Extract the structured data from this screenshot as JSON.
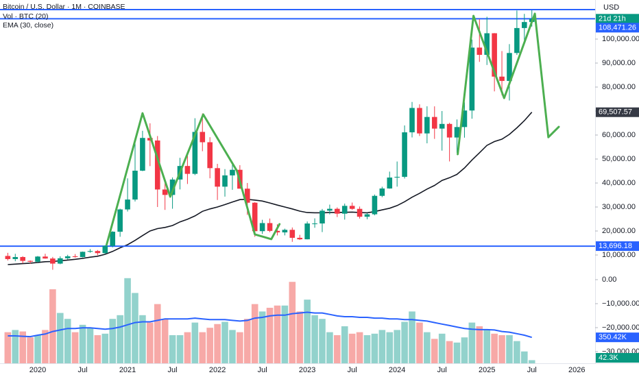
{
  "chart_data": {
    "type": "candlestick",
    "title": "Bitcoin / U.S. Dollar · 1M · COINBASE",
    "currency": "USD",
    "countdown": "21d 21h",
    "categories": [
      null,
      null,
      null,
      null,
      "2020",
      null,
      null,
      null,
      null,
      null,
      "Jul",
      null,
      null,
      null,
      null,
      null,
      "2021",
      null,
      null,
      null,
      null,
      null,
      "Jul",
      null,
      null,
      null,
      null,
      null,
      "2022",
      null,
      null,
      null,
      null,
      null,
      "Jul",
      null,
      null,
      null,
      null,
      null,
      "2023",
      null,
      null,
      null,
      null,
      null,
      "Jul",
      null,
      null,
      null,
      null,
      null,
      "2024",
      null,
      null,
      null,
      null,
      null,
      "Jul",
      null,
      null,
      null,
      null,
      null,
      "2025",
      null,
      null,
      null,
      null,
      null,
      "Jul",
      null,
      null,
      null,
      null,
      null,
      "2026"
    ],
    "open": [
      9600,
      8300,
      9150,
      7550,
      7190,
      9350,
      8530,
      6410,
      8630,
      9450,
      9140,
      11330,
      11650,
      10780,
      13800,
      19700,
      28990,
      33110,
      45140,
      58790,
      57720,
      37300,
      35040,
      41460,
      47100,
      43820,
      61300,
      57000,
      46200,
      38480,
      43180,
      45510,
      37640,
      31790,
      19930,
      23300,
      20050,
      19420,
      20490,
      17160,
      16540,
      23130,
      23140,
      28470,
      29250,
      27220,
      30480,
      29230,
      25940,
      26970,
      34650,
      37720,
      42280,
      42580,
      61130,
      71290,
      60670,
      67530,
      62680,
      64630,
      58970,
      63330,
      70220,
      96450,
      93430,
      102430,
      84350,
      82550,
      94200,
      104600,
      107100,
      null,
      null,
      null,
      null,
      null,
      null
    ],
    "high": [
      10900,
      10500,
      9500,
      7750,
      9580,
      10500,
      9190,
      9460,
      10080,
      10390,
      11440,
      12470,
      12070,
      14100,
      19900,
      29300,
      41950,
      58350,
      61780,
      64890,
      59590,
      41330,
      42320,
      50500,
      52920,
      67000,
      69000,
      59100,
      47990,
      45800,
      48200,
      47450,
      40020,
      31990,
      24670,
      25200,
      22800,
      20990,
      21470,
      18400,
      23960,
      25270,
      29190,
      31000,
      29830,
      31430,
      31860,
      30200,
      27500,
      35200,
      38450,
      44750,
      48970,
      64000,
      73790,
      72800,
      71980,
      71960,
      70000,
      65100,
      66500,
      73620,
      99800,
      108270,
      109300,
      102500,
      95000,
      97900,
      111900,
      110500,
      112000,
      null,
      null,
      null,
      null,
      null,
      null
    ],
    "low": [
      7700,
      7400,
      6500,
      6400,
      6850,
      8450,
      3850,
      6150,
      8110,
      8900,
      8990,
      10960,
      9880,
      10380,
      13200,
      17600,
      28130,
      32300,
      44950,
      47040,
      30000,
      28800,
      29280,
      37330,
      39600,
      43300,
      53260,
      41970,
      32930,
      34330,
      37170,
      37690,
      26700,
      17570,
      18780,
      19520,
      18150,
      18180,
      15480,
      16260,
      16500,
      21350,
      19550,
      26940,
      25810,
      24750,
      28860,
      25170,
      24900,
      26540,
      34100,
      37620,
      38500,
      41880,
      59000,
      59600,
      56550,
      58400,
      53500,
      49000,
      52550,
      58900,
      66800,
      90500,
      89200,
      78200,
      76600,
      74400,
      93400,
      98200,
      105200,
      null,
      null,
      null,
      null,
      null,
      null
    ],
    "close": [
      8300,
      9150,
      7550,
      7190,
      9350,
      8530,
      6410,
      8630,
      9450,
      9140,
      11330,
      11650,
      10780,
      13800,
      19700,
      28990,
      33110,
      45140,
      58790,
      57720,
      37300,
      35040,
      41460,
      47100,
      43820,
      61300,
      57000,
      46200,
      38480,
      43180,
      45510,
      37640,
      31790,
      19930,
      23300,
      20050,
      19420,
      20490,
      17160,
      16540,
      23130,
      23140,
      28470,
      29250,
      27220,
      30480,
      29230,
      25940,
      26970,
      34650,
      37720,
      42280,
      42580,
      61130,
      71290,
      60670,
      67530,
      62680,
      64630,
      58970,
      63330,
      70220,
      96450,
      93430,
      102430,
      84350,
      82550,
      94200,
      104600,
      107100,
      108471.26,
      null,
      null,
      null,
      null,
      null,
      null
    ],
    "up_color": "#089981",
    "down_color": "#f23645",
    "xlim": [
      -1.04,
      78.45
    ],
    "ylim": [
      3429,
      116286
    ],
    "yticks": [
      {
        "value": 10000,
        "label": "10,000.00"
      },
      {
        "value": 20000,
        "label": "20,000.00"
      },
      {
        "value": 30000,
        "label": "30,000.00"
      },
      {
        "value": 40000,
        "label": "40,000.00"
      },
      {
        "value": 50000,
        "label": "50,000.00"
      },
      {
        "value": 60000,
        "label": "60,000.00"
      },
      {
        "value": 70000,
        "label": "70,000.00"
      },
      {
        "value": 80000,
        "label": "80,000.00"
      },
      {
        "value": 90000,
        "label": "90,000.00"
      },
      {
        "value": 100000,
        "label": "100,000.00"
      }
    ],
    "levels": [
      {
        "value": 112286
      },
      {
        "value": 108471.26,
        "label": "108,471.26"
      },
      {
        "value": 13696.18,
        "label": "13,696.18"
      }
    ],
    "level_color": "#2962ff",
    "ema": {
      "name": "EMA (30, close)",
      "color": "#131722",
      "values": [
        6000,
        6200,
        6400,
        6600,
        6900,
        7200,
        7300,
        7600,
        7900,
        8200,
        8600,
        9100,
        9500,
        10300,
        11500,
        13000,
        14300,
        16100,
        18100,
        20000,
        21000,
        21500,
        22300,
        23800,
        24900,
        26300,
        28200,
        29200,
        30000,
        31000,
        32100,
        33100,
        33200,
        32900,
        32500,
        31700,
        30800,
        30000,
        29200,
        28300,
        27700,
        27600,
        27600,
        27700,
        27700,
        27800,
        27900,
        27700,
        27600,
        28100,
        28800,
        29500,
        30600,
        32200,
        34100,
        35700,
        37500,
        39000,
        41100,
        42200,
        43600,
        46300,
        49600,
        52600,
        55700,
        57300,
        58300,
        60300,
        63000,
        66000,
        69507.57,
        null,
        null,
        null,
        null,
        null,
        null
      ],
      "value_labels": [
        null,
        null,
        null,
        null,
        null,
        null,
        null,
        null,
        null,
        null,
        null,
        null,
        null,
        null,
        null,
        null,
        null,
        null,
        null,
        null,
        null,
        null,
        null,
        null,
        null,
        null,
        null,
        null,
        null,
        null,
        null,
        null,
        null,
        null,
        null,
        null,
        null,
        null,
        null,
        null,
        null,
        null,
        null,
        null,
        null,
        null,
        null,
        null,
        null,
        null,
        null,
        null,
        null,
        null,
        null,
        null,
        null,
        null,
        null,
        null,
        null,
        null,
        null,
        null,
        null,
        null,
        null,
        null,
        null,
        null,
        "69,507.57",
        null,
        null,
        null,
        null,
        null,
        null
      ]
    },
    "volume": {
      "name": "Vol · BTC (20)",
      "up_color": "#92d2cc",
      "down_color": "#f7a9a7",
      "ylim": [
        0,
        1250000
      ],
      "values": [
        420000,
        450000,
        430000,
        350000,
        380000,
        450000,
        1000000,
        680000,
        600000,
        420000,
        520000,
        480000,
        380000,
        400000,
        600000,
        650000,
        1150000,
        950000,
        650000,
        550000,
        800000,
        600000,
        380000,
        380000,
        420000,
        550000,
        420000,
        480000,
        530000,
        560000,
        450000,
        420000,
        600000,
        800000,
        700000,
        750000,
        780000,
        780000,
        1100000,
        700000,
        860000,
        650000,
        600000,
        420000,
        380000,
        500000,
        400000,
        420000,
        380000,
        400000,
        450000,
        420000,
        450000,
        560000,
        700000,
        550000,
        420000,
        330000,
        400000,
        300000,
        280000,
        350000,
        550000,
        500000,
        450000,
        400000,
        380000,
        380000,
        300000,
        160000,
        42300,
        null,
        null,
        null,
        null,
        null,
        null
      ],
      "value_labels": [
        null,
        null,
        null,
        null,
        null,
        null,
        null,
        null,
        null,
        null,
        null,
        null,
        null,
        null,
        null,
        null,
        null,
        null,
        null,
        null,
        null,
        null,
        null,
        null,
        null,
        null,
        null,
        null,
        null,
        null,
        null,
        null,
        null,
        null,
        null,
        null,
        null,
        null,
        null,
        null,
        null,
        null,
        null,
        null,
        null,
        null,
        null,
        null,
        null,
        null,
        null,
        null,
        null,
        null,
        null,
        null,
        null,
        null,
        null,
        null,
        null,
        null,
        null,
        null,
        null,
        null,
        null,
        null,
        null,
        null,
        "42.3K",
        null,
        null,
        null,
        null,
        null,
        null
      ]
    },
    "volume_ma": {
      "color": "#2962ff",
      "values": [
        370000,
        370000,
        365000,
        360000,
        380000,
        395000,
        430000,
        450000,
        470000,
        470000,
        480000,
        480000,
        470000,
        460000,
        470000,
        490000,
        520000,
        550000,
        560000,
        560000,
        580000,
        600000,
        600000,
        600000,
        600000,
        610000,
        600000,
        590000,
        590000,
        590000,
        580000,
        570000,
        580000,
        610000,
        620000,
        640000,
        650000,
        650000,
        670000,
        680000,
        690000,
        680000,
        680000,
        660000,
        640000,
        630000,
        630000,
        620000,
        620000,
        610000,
        610000,
        600000,
        600000,
        590000,
        590000,
        580000,
        570000,
        550000,
        530000,
        510000,
        490000,
        470000,
        460000,
        455000,
        455000,
        450000,
        430000,
        420000,
        400000,
        380000,
        350420,
        null,
        null,
        null,
        null,
        null,
        null
      ],
      "value_labels": [
        null,
        null,
        null,
        null,
        null,
        null,
        null,
        null,
        null,
        null,
        null,
        null,
        null,
        null,
        null,
        null,
        null,
        null,
        null,
        null,
        null,
        null,
        null,
        null,
        null,
        null,
        null,
        null,
        null,
        null,
        null,
        null,
        null,
        null,
        null,
        null,
        null,
        null,
        null,
        null,
        null,
        null,
        null,
        null,
        null,
        null,
        null,
        null,
        null,
        null,
        null,
        null,
        null,
        null,
        null,
        null,
        null,
        null,
        null,
        null,
        null,
        null,
        null,
        null,
        null,
        null,
        null,
        null,
        null,
        null,
        "350.42K",
        null,
        null,
        null,
        null,
        null,
        null
      ]
    },
    "pane2_ylim": [
      -34857,
      3714
    ],
    "pane2_ticks": [
      {
        "value": 0,
        "label": "0.00"
      },
      {
        "value": -10000,
        "label": "−10,000.00"
      },
      {
        "value": -20000,
        "label": "−20,000.00"
      },
      {
        "value": -30000,
        "label": "−30,000.00"
      }
    ],
    "annotations": [
      {
        "color": "#4caf50",
        "x": [
          13.2,
          18.0,
          21.7,
          26.1,
          30.6,
          33.0,
          35.2,
          36.3
        ],
        "y": [
          14300,
          69100,
          34300,
          68600,
          45100,
          18600,
          16600,
          22900
        ]
      },
      {
        "color": "#4caf50",
        "x": [
          60.1,
          62.2,
          66.3,
          70.4,
          72.2,
          73.6
        ],
        "y": [
          52000,
          109700,
          75400,
          110600,
          59100,
          63400
        ]
      }
    ]
  }
}
